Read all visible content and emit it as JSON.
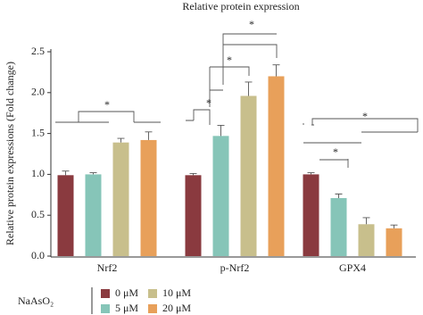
{
  "chart_data": {
    "type": "bar",
    "title": "Relative protein expression",
    "y_label": "Relative protein expressions (Fold change)",
    "categories": [
      "Nrf2",
      "p-Nrf2",
      "GPX4"
    ],
    "series": [
      {
        "name": "0 μM",
        "color": "#8a3a3f",
        "values": [
          0.99,
          0.99,
          1.0
        ],
        "errors": [
          0.05,
          0.02,
          0.02
        ]
      },
      {
        "name": "5 μM",
        "color": "#86c5b8",
        "values": [
          1.0,
          1.47,
          0.71
        ],
        "errors": [
          0.02,
          0.13,
          0.05
        ]
      },
      {
        "name": "10 μM",
        "color": "#c8bf8c",
        "values": [
          1.39,
          1.96,
          0.39
        ],
        "errors": [
          0.05,
          0.17,
          0.08
        ]
      },
      {
        "name": "20 μM",
        "color": "#e8a05a",
        "values": [
          1.42,
          2.2,
          0.34
        ],
        "errors": [
          0.1,
          0.14,
          0.04
        ]
      }
    ],
    "legend_title": "NaAsO₂",
    "ylim": [
      0,
      2.5
    ],
    "yticks": [
      {
        "value": 0,
        "label": "0.0"
      },
      {
        "value": 0.5,
        "label": "0.5"
      },
      {
        "value": 1,
        "label": "1.0"
      },
      {
        "value": 1.5,
        "label": "1.5"
      },
      {
        "value": 2,
        "label": "2.0"
      },
      {
        "value": 2.5,
        "label": "2.5"
      }
    ],
    "annotations": [
      "*",
      "*",
      "*",
      "*",
      "*",
      "*"
    ]
  }
}
